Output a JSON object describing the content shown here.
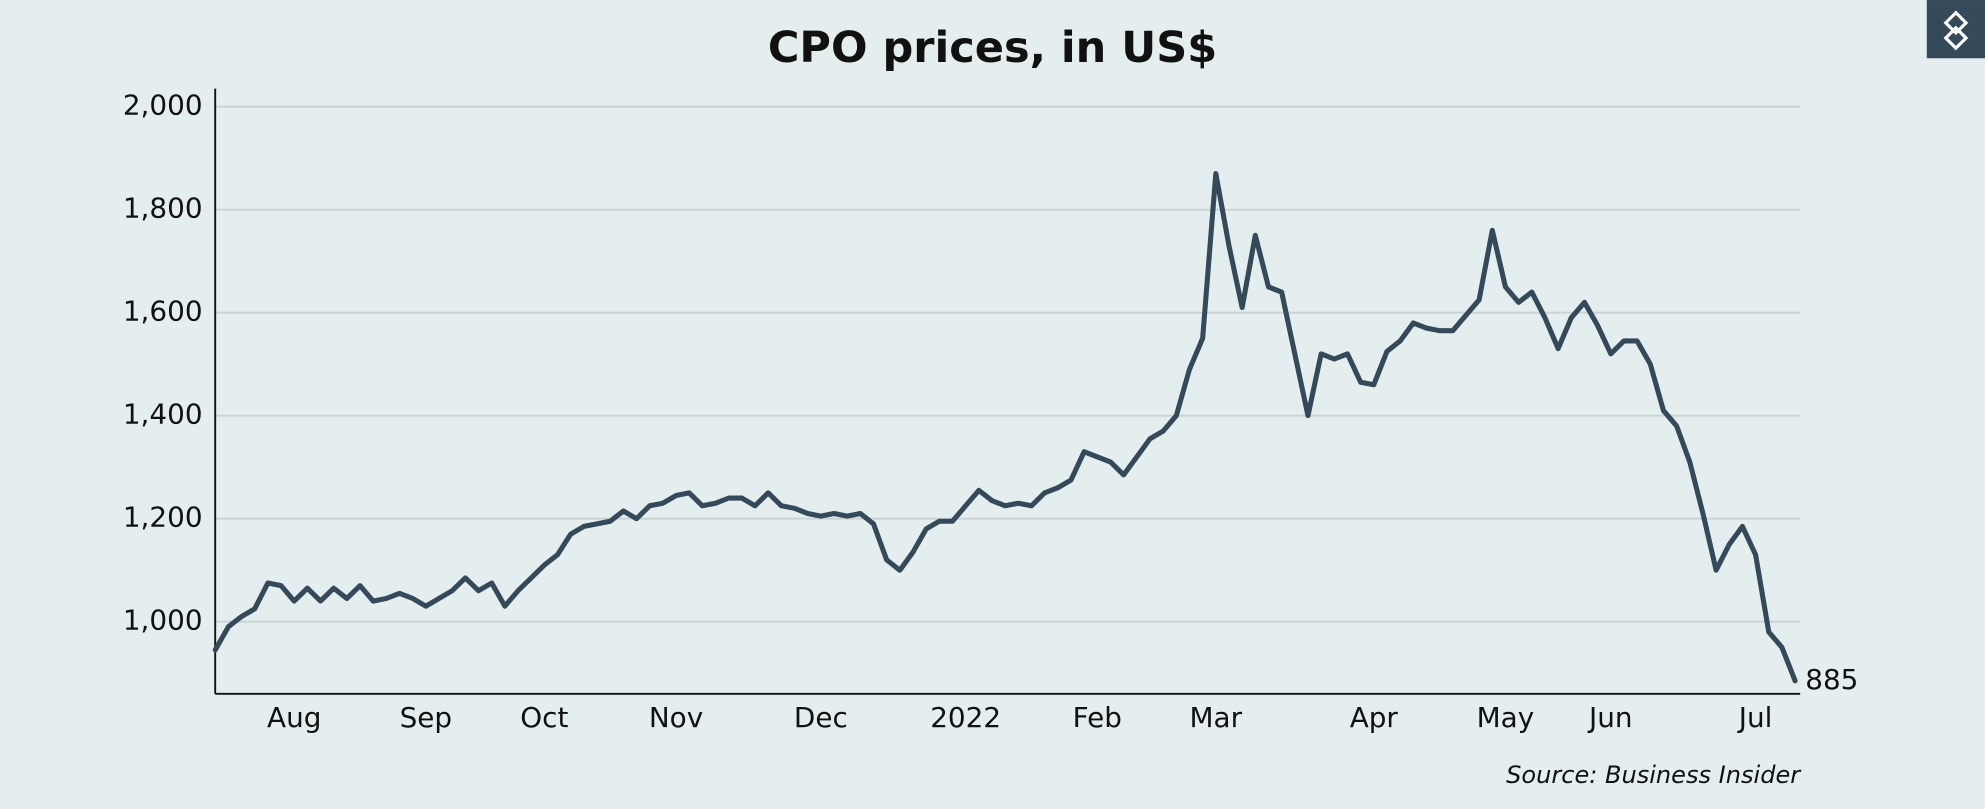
{
  "chart_data": {
    "type": "line",
    "title": "CPO prices, in US$",
    "source": "Source: Business Insider",
    "categories": [
      null,
      null,
      null,
      null,
      null,
      null,
      "Aug",
      null,
      null,
      null,
      null,
      null,
      null,
      null,
      null,
      null,
      "Sep",
      null,
      null,
      null,
      null,
      null,
      null,
      null,
      null,
      "Oct",
      null,
      null,
      null,
      null,
      null,
      null,
      null,
      null,
      null,
      "Nov",
      null,
      null,
      null,
      null,
      null,
      null,
      null,
      null,
      null,
      null,
      "Dec",
      null,
      null,
      null,
      null,
      null,
      null,
      null,
      null,
      null,
      null,
      "2022",
      null,
      null,
      null,
      null,
      null,
      null,
      null,
      null,
      null,
      "Feb",
      null,
      null,
      null,
      null,
      null,
      null,
      null,
      null,
      "Mar",
      null,
      null,
      null,
      null,
      null,
      null,
      null,
      null,
      null,
      null,
      null,
      "Apr",
      null,
      null,
      null,
      null,
      null,
      null,
      null,
      null,
      null,
      "May",
      null,
      null,
      null,
      null,
      null,
      null,
      null,
      "Jun",
      null,
      null,
      null,
      null,
      null,
      null,
      null,
      null,
      null,
      null,
      "Jul",
      null,
      null,
      null
    ],
    "series": [
      {
        "name": "CPO price",
        "color": "#34495a",
        "values": [
          945,
          990,
          1010,
          1025,
          1075,
          1070,
          1040,
          1065,
          1040,
          1065,
          1045,
          1070,
          1040,
          1045,
          1055,
          1045,
          1030,
          1045,
          1060,
          1085,
          1060,
          1075,
          1030,
          1060,
          1085,
          1110,
          1130,
          1170,
          1185,
          1190,
          1195,
          1215,
          1200,
          1225,
          1230,
          1245,
          1250,
          1225,
          1230,
          1240,
          1240,
          1225,
          1250,
          1225,
          1220,
          1210,
          1205,
          1210,
          1205,
          1210,
          1190,
          1120,
          1100,
          1135,
          1180,
          1195,
          1195,
          1225,
          1255,
          1235,
          1225,
          1230,
          1225,
          1250,
          1260,
          1275,
          1330,
          1320,
          1310,
          1285,
          1320,
          1355,
          1370,
          1400,
          1490,
          1550,
          1870,
          1730,
          1610,
          1750,
          1650,
          1640,
          1520,
          1400,
          1520,
          1510,
          1520,
          1465,
          1460,
          1525,
          1545,
          1580,
          1570,
          1565,
          1565,
          1595,
          1625,
          1760,
          1650,
          1620,
          1640,
          1590,
          1530,
          1590,
          1620,
          1575,
          1520,
          1545,
          1545,
          1500,
          1410,
          1380,
          1310,
          1210,
          1100,
          1150,
          1185,
          1130,
          980,
          950,
          885
        ]
      }
    ],
    "ylim": [
      860,
      2035
    ],
    "yticks": [
      {
        "value": 1000,
        "label": "1,000"
      },
      {
        "value": 1200,
        "label": "1,200"
      },
      {
        "value": 1400,
        "label": "1,400"
      },
      {
        "value": 1600,
        "label": "1,600"
      },
      {
        "value": 1800,
        "label": "1,800"
      },
      {
        "value": 2000,
        "label": "2,000"
      }
    ],
    "grid": true,
    "end_label": true
  }
}
